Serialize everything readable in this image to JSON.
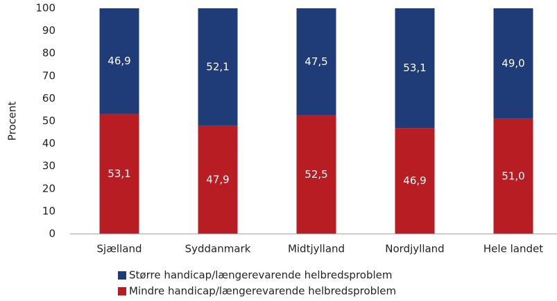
{
  "chart_data": {
    "type": "stacked_bar",
    "y_label": "Procent",
    "categories": [
      "Sjælland",
      "Syddanmark",
      "Midtjylland",
      "Nordjylland",
      "Hele landet"
    ],
    "series": [
      {
        "name": "Større handicap/længerevarende helbredsproblem",
        "color": "#1f3c78",
        "values": [
          46.9,
          52.1,
          47.5,
          53.1,
          49.0
        ],
        "value_labels": [
          "46,9",
          "52,1",
          "47,5",
          "53,1",
          "49,0"
        ]
      },
      {
        "name": "Mindre handicap/længerevarende helbredsproblem",
        "color": "#b71d23",
        "values": [
          53.1,
          47.9,
          52.5,
          46.9,
          51.0
        ],
        "value_labels": [
          "53,1",
          "47,9",
          "52,5",
          "46,9",
          "51,0"
        ]
      }
    ],
    "ylim": [
      0,
      100
    ],
    "yticks": [
      0,
      10,
      20,
      30,
      40,
      50,
      60,
      70,
      80,
      90,
      100
    ],
    "grid": false
  }
}
